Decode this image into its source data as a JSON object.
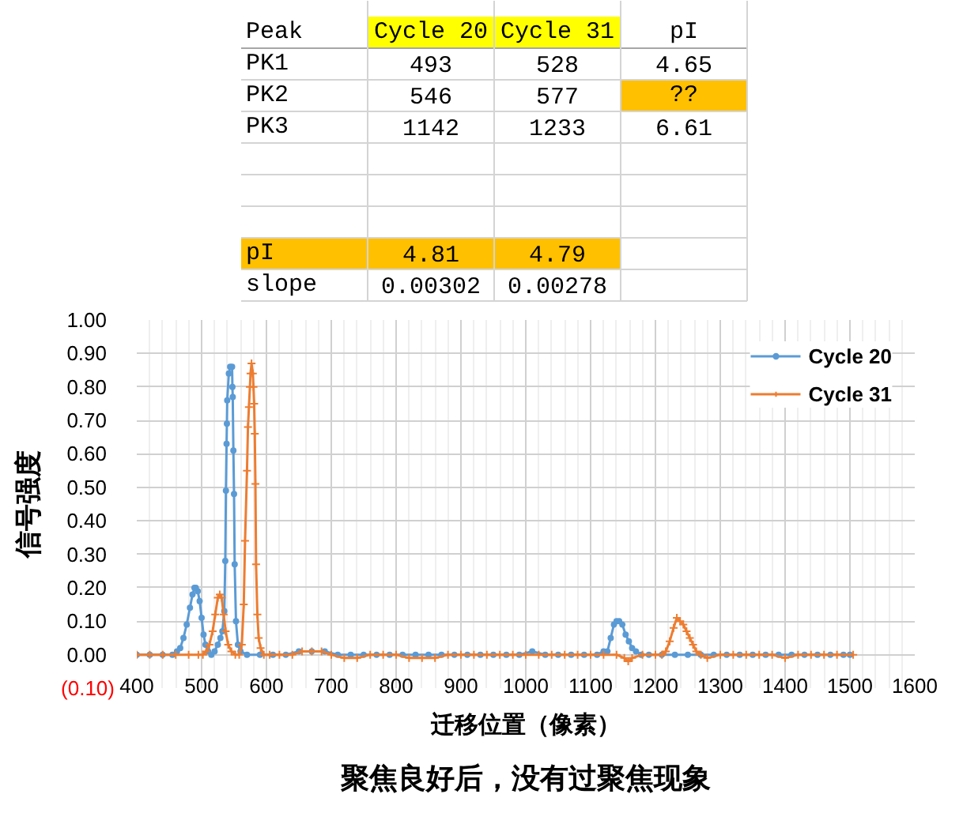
{
  "chart_data": [
    {
      "type": "other",
      "cell_labels": [
        [
          "Peak",
          "Cycle 20",
          "Cycle 31",
          "pI"
        ],
        [
          "PK1",
          "493",
          "528",
          "4.65"
        ],
        [
          "PK2",
          "546",
          "577",
          "??"
        ],
        [
          "PK3",
          "1142",
          "1233",
          "6.61"
        ],
        [
          null,
          null,
          null,
          null
        ],
        [
          null,
          null,
          null,
          null
        ],
        [
          null,
          null,
          null,
          null
        ],
        [
          "pI",
          "4.81",
          "4.79",
          null
        ],
        [
          "slope",
          "0.00302",
          "0.00278",
          null
        ]
      ],
      "colors": [
        [
          null,
          "#ffff00",
          "#ffff00",
          null
        ],
        [
          null,
          null,
          null,
          null
        ],
        [
          null,
          null,
          null,
          "#ffc000"
        ],
        [
          null,
          null,
          null,
          null
        ],
        [
          null,
          null,
          null,
          null
        ],
        [
          null,
          null,
          null,
          null
        ],
        [
          null,
          null,
          null,
          null
        ],
        [
          "#ffc000",
          "#ffc000",
          "#ffc000",
          null
        ],
        [
          null,
          null,
          null,
          null
        ]
      ]
    },
    {
      "type": "line",
      "xlabel": "迁移位置（像素）",
      "ylabel": "信号强度",
      "annotations": [
        "聚焦良好后，没有过聚焦现象"
      ],
      "xlim": [
        400,
        1600
      ],
      "xticks": [
        400,
        500,
        600,
        700,
        800,
        900,
        1000,
        1100,
        1200,
        1300,
        1400,
        1500,
        1600
      ],
      "ylim": [
        -0.1,
        1.0
      ],
      "yticks": [
        {
          "value": -0.1,
          "label": "(0.10)"
        },
        {
          "value": 0,
          "label": "0.00"
        },
        {
          "value": 0.1,
          "label": "0.10"
        },
        {
          "value": 0.2,
          "label": "0.20"
        },
        {
          "value": 0.3,
          "label": "0.30"
        },
        {
          "value": 0.4,
          "label": "0.40"
        },
        {
          "value": 0.5,
          "label": "0.50"
        },
        {
          "value": 0.6,
          "label": "0.60"
        },
        {
          "value": 0.7,
          "label": "0.70"
        },
        {
          "value": 0.8,
          "label": "0.80"
        },
        {
          "value": 0.9,
          "label": "0.90"
        },
        {
          "value": 1.0,
          "label": "1.00"
        }
      ],
      "grid": true,
      "legend": "top right",
      "line_style": "solid",
      "series": [
        {
          "name": "Cycle 20",
          "color": "#5b9bd5",
          "marker": "circle",
          "x": [
            400,
            420,
            440,
            455,
            462,
            467,
            472,
            477,
            482,
            486,
            489,
            491,
            494,
            497,
            500,
            503,
            506,
            510,
            515,
            520,
            525,
            529,
            532,
            535,
            536.5,
            537.5,
            538.5,
            539,
            539.5,
            542,
            544,
            547,
            547.5,
            548,
            549,
            550,
            551,
            553,
            556,
            560,
            570,
            590,
            610,
            630,
            650,
            670,
            690,
            710,
            730,
            750,
            770,
            790,
            810,
            830,
            850,
            870,
            890,
            910,
            930,
            950,
            970,
            990,
            1010,
            1030,
            1050,
            1070,
            1090,
            1110,
            1120,
            1126,
            1131,
            1136,
            1140,
            1144,
            1149,
            1154,
            1159,
            1164,
            1170,
            1178,
            1190,
            1210,
            1230,
            1250,
            1270,
            1290,
            1310,
            1330,
            1350,
            1370,
            1390,
            1410,
            1430,
            1450,
            1470,
            1490,
            1500
          ],
          "values": [
            0,
            0,
            0,
            0,
            0.01,
            0.02,
            0.05,
            0.09,
            0.14,
            0.18,
            0.2,
            0.2,
            0.19,
            0.16,
            0.11,
            0.06,
            0.03,
            0.01,
            0,
            0.01,
            0.03,
            0.05,
            0.07,
            0.13,
            0.28,
            0.49,
            0.63,
            0.69,
            0.76,
            0.84,
            0.86,
            0.86,
            0.8,
            0.77,
            0.61,
            0.48,
            0.27,
            0.1,
            0.03,
            0.01,
            0,
            0,
            0,
            0,
            0.01,
            0.01,
            0.01,
            0,
            0,
            0,
            0,
            0,
            0,
            0,
            0,
            0,
            0,
            0,
            0,
            0,
            0,
            0,
            0.01,
            0,
            0,
            0,
            0,
            0,
            0.01,
            0.01,
            0.05,
            0.09,
            0.1,
            0.1,
            0.09,
            0.06,
            0.04,
            0.02,
            0.01,
            0,
            0,
            0,
            0,
            0,
            0,
            0,
            0,
            0,
            0,
            0,
            0,
            0,
            0,
            0,
            0,
            0,
            0
          ]
        },
        {
          "name": "Cycle 31",
          "color": "#ed7d31",
          "marker": "cross",
          "x": [
            400,
            420,
            440,
            460,
            480,
            495,
            502,
            507,
            512,
            517,
            521,
            525,
            528,
            531,
            534,
            537,
            541,
            546,
            552,
            558,
            562,
            565,
            567,
            570,
            571.5,
            573,
            574.5,
            575.5,
            577,
            579,
            580,
            581,
            582,
            583,
            584,
            586,
            588,
            591,
            596,
            605,
            620,
            640,
            655,
            670,
            685,
            700,
            720,
            740,
            760,
            780,
            800,
            820,
            840,
            860,
            880,
            900,
            920,
            940,
            960,
            980,
            1000,
            1020,
            1040,
            1060,
            1080,
            1100,
            1120,
            1140,
            1152,
            1158,
            1164,
            1180,
            1200,
            1210,
            1216,
            1222,
            1228,
            1233,
            1238,
            1243,
            1248,
            1253,
            1258,
            1263,
            1270,
            1280,
            1300,
            1320,
            1340,
            1360,
            1380,
            1400,
            1420,
            1440,
            1460,
            1480,
            1505
          ],
          "values": [
            0,
            0,
            0,
            0,
            0,
            0,
            0,
            0.01,
            0.03,
            0.07,
            0.12,
            0.17,
            0.18,
            0.17,
            0.12,
            0.07,
            0.03,
            0.01,
            0,
            0,
            0.03,
            0.15,
            0.34,
            0.55,
            0.68,
            0.74,
            0.8,
            0.84,
            0.87,
            0.84,
            0.8,
            0.75,
            0.66,
            0.51,
            0.27,
            0.12,
            0.05,
            0.02,
            0,
            0,
            0,
            0,
            0.01,
            0.01,
            0.01,
            0,
            -0.01,
            -0.01,
            0,
            0,
            0,
            -0.01,
            -0.01,
            -0.01,
            0,
            0,
            0,
            0,
            0,
            0,
            0,
            0,
            0,
            0,
            0,
            0,
            0,
            0,
            -0.01,
            -0.02,
            -0.01,
            0,
            0,
            0,
            0.01,
            0.04,
            0.08,
            0.11,
            0.1,
            0.09,
            0.07,
            0.05,
            0.03,
            0.01,
            0,
            -0.01,
            0,
            0,
            0,
            0,
            0,
            -0.01,
            0,
            0,
            0,
            0,
            0
          ]
        }
      ]
    }
  ]
}
